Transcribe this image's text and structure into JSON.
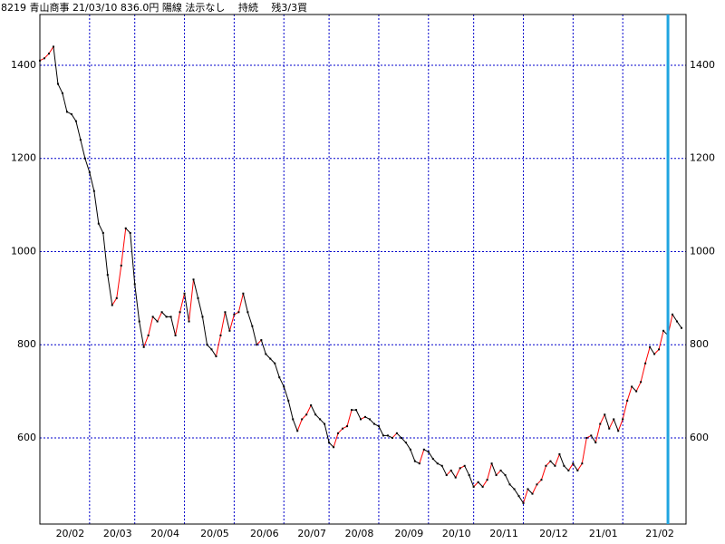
{
  "chart_data": {
    "type": "line",
    "title": "8219 青山商事 21/03/10 836.0円 陽線 法示なし　 持続　 残3/3買",
    "color": "#000000",
    "rise_color": "#ff0000",
    "grid_color": "#0000cc",
    "marker_color": "#1fa5e0",
    "values": [
      1410,
      1415,
      1425,
      1440,
      1360,
      1340,
      1300,
      1295,
      1280,
      1240,
      1200,
      1170,
      1130,
      1060,
      1040,
      950,
      885,
      900,
      970,
      1050,
      1040,
      930,
      850,
      795,
      820,
      860,
      850,
      870,
      860,
      860,
      820,
      870,
      910,
      850,
      940,
      900,
      860,
      800,
      790,
      775,
      820,
      870,
      830,
      865,
      870,
      910,
      870,
      840,
      800,
      810,
      780,
      770,
      760,
      730,
      710,
      680,
      640,
      615,
      640,
      650,
      670,
      650,
      640,
      630,
      590,
      580,
      610,
      620,
      625,
      660,
      660,
      640,
      645,
      640,
      630,
      625,
      605,
      605,
      600,
      610,
      600,
      590,
      575,
      550,
      545,
      575,
      570,
      555,
      545,
      540,
      520,
      530,
      515,
      535,
      540,
      520,
      495,
      505,
      495,
      510,
      545,
      520,
      530,
      520,
      500,
      490,
      475,
      460,
      490,
      480,
      500,
      510,
      540,
      550,
      540,
      565,
      540,
      530,
      545,
      530,
      545,
      600,
      605,
      590,
      630,
      650,
      620,
      640,
      615,
      640,
      680,
      710,
      700,
      720,
      760,
      795,
      780,
      790,
      830,
      820,
      865,
      850,
      836
    ],
    "xlim": [
      0,
      143
    ],
    "xticks": [
      {
        "value": 0,
        "label": "20/02"
      },
      {
        "value": 11,
        "label": "20/03"
      },
      {
        "value": 21,
        "label": "20/04"
      },
      {
        "value": 32,
        "label": "20/05"
      },
      {
        "value": 43,
        "label": "20/06"
      },
      {
        "value": 54,
        "label": "20/07"
      },
      {
        "value": 64,
        "label": "20/08"
      },
      {
        "value": 75,
        "label": "20/09"
      },
      {
        "value": 86,
        "label": "20/10"
      },
      {
        "value": 96,
        "label": "20/11"
      },
      {
        "value": 107,
        "label": "20/12"
      },
      {
        "value": 118,
        "label": "21/01"
      },
      {
        "value": 129,
        "label": "21/02"
      }
    ],
    "ylim": [
      415,
      1509
    ],
    "yticks": [
      600,
      800,
      1000,
      1200,
      1400
    ],
    "marker_x": 139,
    "grid": true
  }
}
